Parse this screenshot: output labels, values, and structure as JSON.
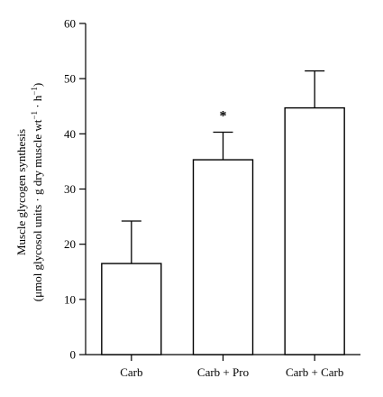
{
  "chart_data": {
    "type": "bar",
    "categories": [
      "Carb",
      "Carb + Pro",
      "Carb + Carb"
    ],
    "values": [
      16.5,
      35.3,
      44.7
    ],
    "error_upper": [
      24.2,
      40.3,
      51.4
    ],
    "annotations": [
      "",
      "*",
      ""
    ],
    "ylabel_line1": "Muscle glycogen synthesis",
    "ylabel_line2": "(μmol glycosol units · g dry muscle wt",
    "ylabel_sup1": "−1",
    "ylabel_mid": " · h",
    "ylabel_sup2": "−1",
    "ylabel_end": ")",
    "ylim": [
      0,
      60
    ],
    "yticks": [
      0,
      10,
      20,
      30,
      40,
      50,
      60
    ],
    "grid": false,
    "bar_fill": "#ffffff",
    "stroke_color": "#000000"
  }
}
